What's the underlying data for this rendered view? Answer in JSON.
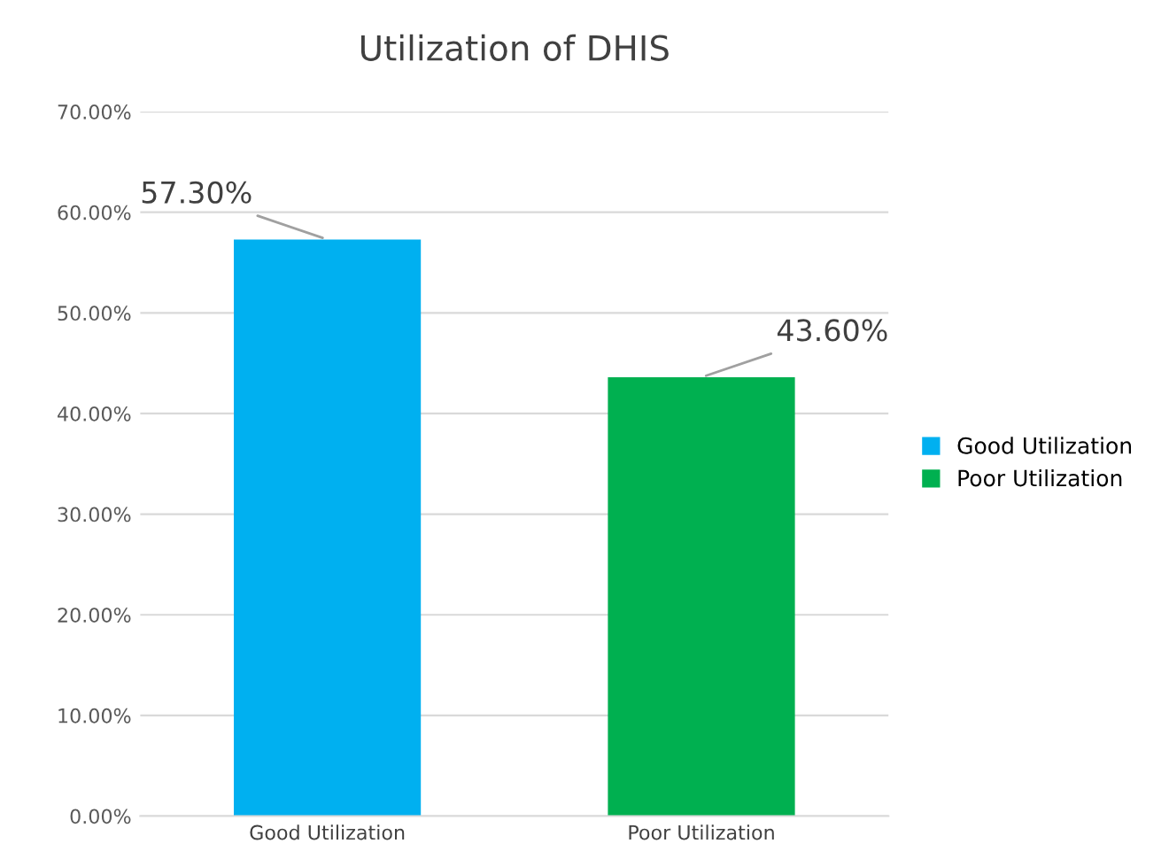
{
  "chart_data": {
    "type": "bar",
    "title": "Utilization of DHIS",
    "categories": [
      "Good Utilization",
      "Poor Utilization"
    ],
    "series": [
      {
        "name": "Good Utilization",
        "color": "#00b0f0",
        "values": [
          57.3,
          null
        ],
        "value_labels": [
          "57.30%",
          null
        ]
      },
      {
        "name": "Poor Utilization",
        "color": "#00b050",
        "values": [
          null,
          43.6
        ],
        "value_labels": [
          null,
          "43.60%"
        ]
      }
    ],
    "ylim": [
      0,
      70
    ],
    "yticks": [
      {
        "value": 0,
        "label": "0.00%"
      },
      {
        "value": 10,
        "label": "10.00%"
      },
      {
        "value": 20,
        "label": "20.00%"
      },
      {
        "value": 30,
        "label": "30.00%"
      },
      {
        "value": 40,
        "label": "40.00%"
      },
      {
        "value": 50,
        "label": "50.00%"
      },
      {
        "value": 60,
        "label": "60.00%"
      },
      {
        "value": 70,
        "label": "70.00%"
      }
    ],
    "grid": "y",
    "legend": "right"
  }
}
